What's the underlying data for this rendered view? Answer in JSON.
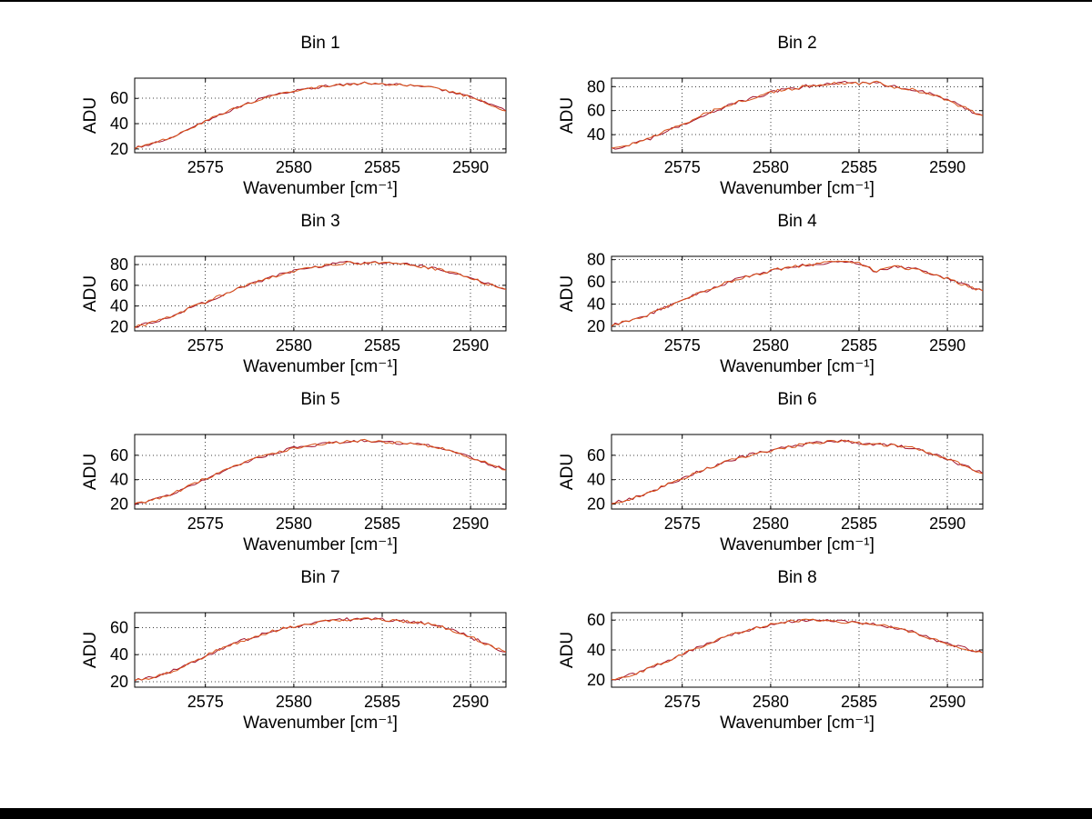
{
  "figure": {
    "background": "#ffffff",
    "border_color": "#000000"
  },
  "line_colors": [
    "#a2142f",
    "#d95319"
  ],
  "chart_data": [
    {
      "type": "line",
      "title": "Bin 1",
      "xlabel": "Wavenumber [cm⁻¹]",
      "ylabel": "ADU",
      "xlim": [
        2571,
        2592
      ],
      "ylim": [
        17,
        76
      ],
      "xticks": [
        2575,
        2580,
        2585,
        2590
      ],
      "yticks": [
        20,
        40,
        60
      ],
      "grid": "dotted",
      "noise": 1.0,
      "x": [
        2571,
        2572,
        2573,
        2574,
        2575,
        2576,
        2577,
        2578,
        2579,
        2580,
        2581,
        2582,
        2583,
        2584,
        2585,
        2586,
        2587,
        2588,
        2589,
        2590,
        2591,
        2592
      ],
      "values": [
        21,
        24,
        29,
        35,
        42,
        48,
        54,
        59,
        63,
        66,
        68,
        70,
        71,
        72,
        71,
        71,
        70,
        68,
        65,
        61,
        56,
        50
      ]
    },
    {
      "type": "line",
      "title": "Bin 2",
      "xlabel": "Wavenumber [cm⁻¹]",
      "ylabel": "ADU",
      "xlim": [
        2571,
        2592
      ],
      "ylim": [
        25,
        87
      ],
      "xticks": [
        2575,
        2580,
        2585,
        2590
      ],
      "yticks": [
        40,
        60,
        80
      ],
      "grid": "dotted",
      "noise": 1.6,
      "x": [
        2571,
        2572,
        2573,
        2574,
        2575,
        2576,
        2577,
        2578,
        2579,
        2580,
        2581,
        2582,
        2583,
        2584,
        2585,
        2586,
        2587,
        2588,
        2589,
        2590,
        2591,
        2592
      ],
      "values": [
        28,
        31,
        36,
        42,
        49,
        55,
        61,
        66,
        71,
        75,
        78,
        80,
        82,
        83,
        82,
        83,
        80,
        78,
        74,
        69,
        62,
        56
      ]
    },
    {
      "type": "line",
      "title": "Bin 3",
      "xlabel": "Wavenumber [cm⁻¹]",
      "ylabel": "ADU",
      "xlim": [
        2571,
        2592
      ],
      "ylim": [
        16,
        88
      ],
      "xticks": [
        2575,
        2580,
        2585,
        2590
      ],
      "yticks": [
        20,
        40,
        60,
        80
      ],
      "grid": "dotted",
      "noise": 1.5,
      "x": [
        2571,
        2572,
        2573,
        2574,
        2575,
        2576,
        2577,
        2578,
        2579,
        2580,
        2581,
        2582,
        2583,
        2584,
        2585,
        2586,
        2587,
        2588,
        2589,
        2590,
        2591,
        2592
      ],
      "values": [
        20,
        24,
        30,
        37,
        44,
        51,
        58,
        64,
        69,
        74,
        77,
        80,
        82,
        81,
        82,
        81,
        79,
        76,
        72,
        67,
        61,
        56
      ]
    },
    {
      "type": "line",
      "title": "Bin 4",
      "xlabel": "Wavenumber [cm⁻¹]",
      "ylabel": "ADU",
      "xlim": [
        2571,
        2592
      ],
      "ylim": [
        16,
        83
      ],
      "xticks": [
        2575,
        2580,
        2585,
        2590
      ],
      "yticks": [
        20,
        40,
        60,
        80
      ],
      "grid": "dotted",
      "noise": 1.4,
      "x": [
        2571,
        2572,
        2573,
        2574,
        2575,
        2576,
        2577,
        2578,
        2579,
        2580,
        2581,
        2582,
        2583,
        2584,
        2585,
        2586,
        2587,
        2588,
        2589,
        2590,
        2591,
        2592
      ],
      "values": [
        21,
        25,
        30,
        37,
        44,
        50,
        56,
        62,
        66,
        70,
        73,
        75,
        77,
        78,
        77,
        69,
        74,
        72,
        68,
        63,
        57,
        52
      ]
    },
    {
      "type": "line",
      "title": "Bin 5",
      "xlabel": "Wavenumber [cm⁻¹]",
      "ylabel": "ADU",
      "xlim": [
        2571,
        2592
      ],
      "ylim": [
        16,
        77
      ],
      "xticks": [
        2575,
        2580,
        2585,
        2590
      ],
      "yticks": [
        20,
        40,
        60
      ],
      "grid": "dotted",
      "noise": 1.2,
      "x": [
        2571,
        2572,
        2573,
        2574,
        2575,
        2576,
        2577,
        2578,
        2579,
        2580,
        2581,
        2582,
        2583,
        2584,
        2585,
        2586,
        2587,
        2588,
        2589,
        2590,
        2591,
        2592
      ],
      "values": [
        20,
        23,
        28,
        34,
        41,
        47,
        53,
        58,
        62,
        66,
        68,
        70,
        71,
        72,
        71,
        70,
        69,
        67,
        63,
        58,
        53,
        48
      ]
    },
    {
      "type": "line",
      "title": "Bin 6",
      "xlabel": "Wavenumber [cm⁻¹]",
      "ylabel": "ADU",
      "xlim": [
        2571,
        2592
      ],
      "ylim": [
        16,
        77
      ],
      "xticks": [
        2575,
        2580,
        2585,
        2590
      ],
      "yticks": [
        20,
        40,
        60
      ],
      "grid": "dotted",
      "noise": 1.3,
      "x": [
        2571,
        2572,
        2573,
        2574,
        2575,
        2576,
        2577,
        2578,
        2579,
        2580,
        2581,
        2582,
        2583,
        2584,
        2585,
        2586,
        2587,
        2588,
        2589,
        2590,
        2591,
        2592
      ],
      "values": [
        21,
        24,
        29,
        35,
        41,
        47,
        52,
        57,
        61,
        64,
        67,
        69,
        71,
        72,
        70,
        69,
        68,
        66,
        62,
        57,
        51,
        45
      ]
    },
    {
      "type": "line",
      "title": "Bin 7",
      "xlabel": "Wavenumber [cm⁻¹]",
      "ylabel": "ADU",
      "xlim": [
        2571,
        2592
      ],
      "ylim": [
        16,
        71
      ],
      "xticks": [
        2575,
        2580,
        2585,
        2590
      ],
      "yticks": [
        20,
        40,
        60
      ],
      "grid": "dotted",
      "noise": 1.2,
      "x": [
        2571,
        2572,
        2573,
        2574,
        2575,
        2576,
        2577,
        2578,
        2579,
        2580,
        2581,
        2582,
        2583,
        2584,
        2585,
        2586,
        2587,
        2588,
        2589,
        2590,
        2591,
        2592
      ],
      "values": [
        21,
        23,
        27,
        33,
        39,
        45,
        50,
        54,
        58,
        61,
        63,
        65,
        66,
        66,
        66,
        65,
        64,
        62,
        58,
        53,
        47,
        42
      ]
    },
    {
      "type": "line",
      "title": "Bin 8",
      "xlabel": "Wavenumber [cm⁻¹]",
      "ylabel": "ADU",
      "xlim": [
        2571,
        2592
      ],
      "ylim": [
        15,
        65
      ],
      "xticks": [
        2575,
        2580,
        2585,
        2590
      ],
      "yticks": [
        20,
        40,
        60
      ],
      "grid": "dotted",
      "noise": 1.0,
      "x": [
        2571,
        2572,
        2573,
        2574,
        2575,
        2576,
        2577,
        2578,
        2579,
        2580,
        2581,
        2582,
        2583,
        2584,
        2585,
        2586,
        2587,
        2588,
        2589,
        2590,
        2591,
        2592
      ],
      "values": [
        20,
        23,
        27,
        32,
        37,
        42,
        47,
        51,
        54,
        57,
        59,
        60,
        60,
        59,
        58,
        57,
        55,
        52,
        48,
        44,
        41,
        38
      ]
    }
  ]
}
